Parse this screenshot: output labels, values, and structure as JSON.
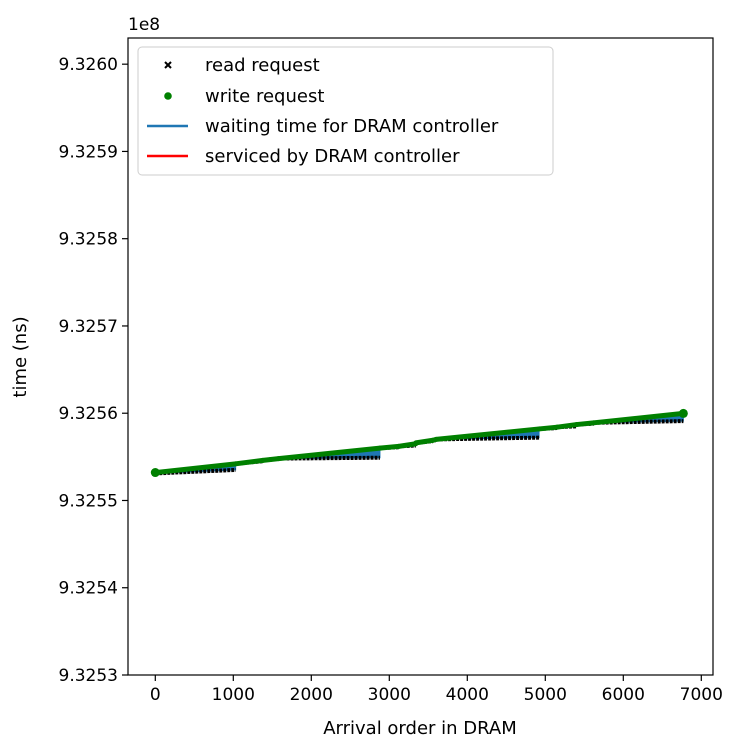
{
  "chart_data": {
    "type": "line",
    "xlabel": "Arrival order in DRAM",
    "ylabel": "time (ns)",
    "offset_text": "1e8",
    "xlim": [
      -350,
      7150
    ],
    "ylim": [
      9.3253,
      9.32603
    ],
    "xticks": [
      0,
      1000,
      2000,
      3000,
      4000,
      5000,
      6000,
      7000
    ],
    "xtick_labels": [
      "0",
      "1000",
      "2000",
      "3000",
      "4000",
      "5000",
      "6000",
      "7000"
    ],
    "yticks": [
      9.3253,
      9.3254,
      9.3255,
      9.3256,
      9.3257,
      9.3258,
      9.3259,
      9.326
    ],
    "ytick_labels": [
      "9.3253",
      "9.3254",
      "9.3255",
      "9.3256",
      "9.3257",
      "9.3258",
      "9.3259",
      "9.3260"
    ],
    "grid": false,
    "legend_position": "upper-left",
    "series": [
      {
        "name": "read request",
        "marker": "x",
        "color": "#000000"
      },
      {
        "name": "write request",
        "marker": "o",
        "color": "#008000"
      },
      {
        "name": "waiting time for DRAM controller",
        "marker": "line",
        "color": "#1f77b4"
      },
      {
        "name": "serviced by DRAM controller",
        "marker": "line",
        "color": "#ff0000"
      }
    ],
    "segments": [
      {
        "x": [
          0,
          1030
        ],
        "arrival": [
          9.325531,
          9.325535
        ],
        "service": [
          9.325532,
          9.325542
        ]
      },
      {
        "x": [
          1030,
          1380
        ],
        "arrival": [
          9.325542,
          9.325545
        ],
        "service": [
          9.325542,
          9.325546
        ]
      },
      {
        "x": [
          1380,
          1480
        ],
        "arrival": [
          9.325546,
          9.325547
        ],
        "service": [
          9.325546,
          9.325547
        ]
      },
      {
        "x": [
          1480,
          1580
        ],
        "arrival": [
          9.325547,
          9.325548
        ],
        "service": [
          9.325547,
          9.325548
        ]
      },
      {
        "x": [
          1580,
          2880
        ],
        "arrival": [
          9.325548,
          9.325549
        ],
        "service": [
          9.325548,
          9.32556
        ]
      },
      {
        "x": [
          2880,
          3120
        ],
        "arrival": [
          9.32556,
          9.325561
        ],
        "service": [
          9.32556,
          9.325562
        ]
      },
      {
        "x": [
          3120,
          3340
        ],
        "arrival": [
          9.325562,
          9.325563
        ],
        "service": [
          9.325562,
          9.325565
        ]
      },
      {
        "x": [
          3340,
          3560
        ],
        "arrival": [
          9.325566,
          9.325568
        ],
        "service": [
          9.325566,
          9.325569
        ]
      },
      {
        "x": [
          3560,
          3600
        ],
        "arrival": [
          9.325569,
          9.325569
        ],
        "service": [
          9.325569,
          9.32557
        ]
      },
      {
        "x": [
          3600,
          4920
        ],
        "arrival": [
          9.32557,
          9.325572
        ],
        "service": [
          9.32557,
          9.325582
        ]
      },
      {
        "x": [
          4920,
          5150
        ],
        "arrival": [
          9.325582,
          9.325583
        ],
        "service": [
          9.325582,
          9.325584
        ]
      },
      {
        "x": [
          5150,
          5400
        ],
        "arrival": [
          9.325584,
          9.325585
        ],
        "service": [
          9.325584,
          9.325587
        ]
      },
      {
        "x": [
          5400,
          5620
        ],
        "arrival": [
          9.325587,
          9.325588
        ],
        "service": [
          9.325587,
          9.325589
        ]
      },
      {
        "x": [
          5620,
          6770
        ],
        "arrival": [
          9.325589,
          9.325591
        ],
        "service": [
          9.325589,
          9.3255998
        ]
      }
    ]
  }
}
